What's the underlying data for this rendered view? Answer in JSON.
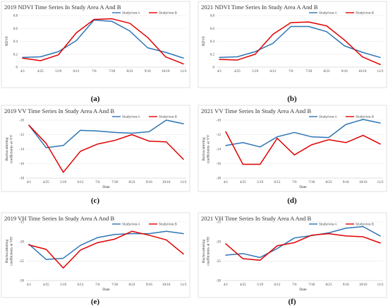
{
  "colors": {
    "series_a": "#2e75b6",
    "series_b": "#e00000"
  },
  "chart_data": [
    {
      "type": "line",
      "caption": "(a)",
      "title": "2019 NDVI Time Series In Study Area A And B",
      "xlabel": "",
      "ylabel": "NDVI",
      "x": [
        "4/1",
        "4/25",
        "5/19",
        "6/12",
        "7/6",
        "7/30",
        "8/23",
        "9/16",
        "10/10",
        "11/3"
      ],
      "ylim": [
        0,
        0.8
      ],
      "yticks": [
        0,
        0.2,
        0.4,
        0.6,
        0.8
      ],
      "ytick_labels": [
        "0",
        "0.2",
        "0.4",
        "0.6",
        "0.8"
      ],
      "grid": true,
      "legend": "top-right",
      "series": [
        {
          "name": "StudyArea A",
          "values": [
            0.15,
            0.16,
            0.24,
            0.41,
            0.73,
            0.71,
            0.56,
            0.3,
            0.23,
            0.14
          ]
        },
        {
          "name": "StudyArea B",
          "values": [
            0.14,
            0.1,
            0.19,
            0.53,
            0.74,
            0.75,
            0.68,
            0.46,
            0.16,
            0.05
          ]
        }
      ]
    },
    {
      "type": "line",
      "caption": "(b)",
      "title": "2021 NDVI Time Series In Study Area A And B",
      "xlabel": "",
      "ylabel": "NDVI",
      "x": [
        "4/1",
        "4/25",
        "5/19",
        "6/12",
        "7/6",
        "7/30",
        "8/23",
        "9/16",
        "10/10",
        "11/3"
      ],
      "ylim": [
        0,
        0.8
      ],
      "yticks": [
        0,
        0.2,
        0.4,
        0.6,
        0.8
      ],
      "ytick_labels": [
        "0",
        "0.2",
        "0.4",
        "0.6",
        "0.8"
      ],
      "grid": true,
      "legend": "top-right",
      "series": [
        {
          "name": "StudyArea A",
          "values": [
            0.15,
            0.16,
            0.24,
            0.37,
            0.63,
            0.63,
            0.55,
            0.33,
            0.23,
            0.15
          ]
        },
        {
          "name": "StudyArea B",
          "values": [
            0.12,
            0.11,
            0.2,
            0.51,
            0.69,
            0.7,
            0.64,
            0.42,
            0.16,
            0.04
          ]
        }
      ]
    },
    {
      "type": "line",
      "caption": "(c)",
      "title": "2019 VV Time Series In Study Area A And B",
      "xlabel": "Date",
      "ylabel": "Backscattering coefficients at VV",
      "x": [
        "4/1",
        "4/25",
        "5/19",
        "6/12",
        "7/6",
        "7/30",
        "8/23",
        "9/16",
        "10/10",
        "11/3"
      ],
      "ylim": [
        -18,
        -10
      ],
      "yticks": [
        -18,
        -16,
        -14,
        -12,
        -10
      ],
      "ytick_labels": [
        "-18",
        "-16",
        "-14",
        "-12",
        "-10"
      ],
      "grid": true,
      "legend": "top-right",
      "series": [
        {
          "name": "StudyArea A",
          "values": [
            -10.7,
            -13.8,
            -13.5,
            -11.4,
            -11.5,
            -11.7,
            -11.8,
            -11.6,
            -10.0,
            -10.5
          ]
        },
        {
          "name": "StudyArea B",
          "values": [
            -10.7,
            -13.2,
            -17.2,
            -14.3,
            -13.3,
            -12.8,
            -12.0,
            -12.9,
            -13.0,
            -15.4
          ]
        }
      ]
    },
    {
      "type": "line",
      "caption": "(d)",
      "title": "2021 VV Time Series In Study Area A And B",
      "xlabel": "Date",
      "ylabel": "Backscattering coefficients at VV",
      "x": [
        "4/1",
        "4/25",
        "5/19",
        "6/12",
        "7/6",
        "7/30",
        "8/23",
        "9/16",
        "10/10",
        "11/3"
      ],
      "ylim": [
        -18,
        -10
      ],
      "yticks": [
        -18,
        -16,
        -14,
        -12,
        -10
      ],
      "ytick_labels": [
        "-18",
        "-16",
        "-14",
        "-12",
        "-10"
      ],
      "grid": true,
      "legend": "top-right",
      "series": [
        {
          "name": "StudyArea A",
          "values": [
            -13.5,
            -13.1,
            -13.7,
            -12.3,
            -11.7,
            -12.3,
            -12.4,
            -10.6,
            -9.9,
            -10.4
          ]
        },
        {
          "name": "StudyArea B",
          "values": [
            -11.6,
            -16.1,
            -16.1,
            -12.5,
            -14.8,
            -13.4,
            -12.7,
            -13.1,
            -12.1,
            -13.3
          ]
        }
      ]
    },
    {
      "type": "line",
      "caption": "(e)",
      "title": "2019 VH Time Series In Study Area A And B",
      "xlabel": "Date",
      "ylabel": "Backscattering coefficients at VH",
      "x": [
        "4/1",
        "4/25",
        "5/19",
        "6/12",
        "7/6",
        "7/30",
        "8/23",
        "9/16",
        "10/10",
        "11/3"
      ],
      "ylim": [
        -30,
        -15
      ],
      "yticks": [
        -30,
        -25,
        -20,
        -15
      ],
      "ytick_labels": [
        "-30",
        "-25",
        "-20",
        "-15"
      ],
      "grid": true,
      "legend": "top-right",
      "series": [
        {
          "name": "StudyArea A",
          "values": [
            -20.7,
            -24.6,
            -24.3,
            -21.0,
            -19.0,
            -18.2,
            -18.0,
            -18.0,
            -17.4,
            -18.0
          ]
        },
        {
          "name": "StudyArea B",
          "values": [
            -20.9,
            -22.0,
            -26.8,
            -22.2,
            -20.3,
            -19.4,
            -17.4,
            -18.4,
            -19.6,
            -23.2
          ]
        }
      ]
    },
    {
      "type": "line",
      "caption": "(f)",
      "title": "2021 VH Time Series In Study Area A And B",
      "xlabel": "Date",
      "ylabel": "Backscattering coefficients at VH",
      "x": [
        "4/1",
        "4/25",
        "5/19",
        "6/12",
        "7/6",
        "7/30",
        "8/23",
        "9/16",
        "10/10",
        "11/3"
      ],
      "ylim": [
        -30,
        -15
      ],
      "yticks": [
        -30,
        -25,
        -20,
        -15
      ],
      "ytick_labels": [
        "-30",
        "-25",
        "-20",
        "-15"
      ],
      "grid": true,
      "legend": "top-right",
      "series": [
        {
          "name": "StudyArea A",
          "values": [
            -23.5,
            -23.1,
            -24.1,
            -21.8,
            -19.1,
            -18.5,
            -17.8,
            -16.6,
            -16.2,
            -18.6
          ]
        },
        {
          "name": "StudyArea B",
          "values": [
            -20.6,
            -24.4,
            -24.8,
            -21.1,
            -20.3,
            -18.4,
            -18.0,
            -18.6,
            -18.8,
            -20.4
          ]
        }
      ]
    }
  ]
}
